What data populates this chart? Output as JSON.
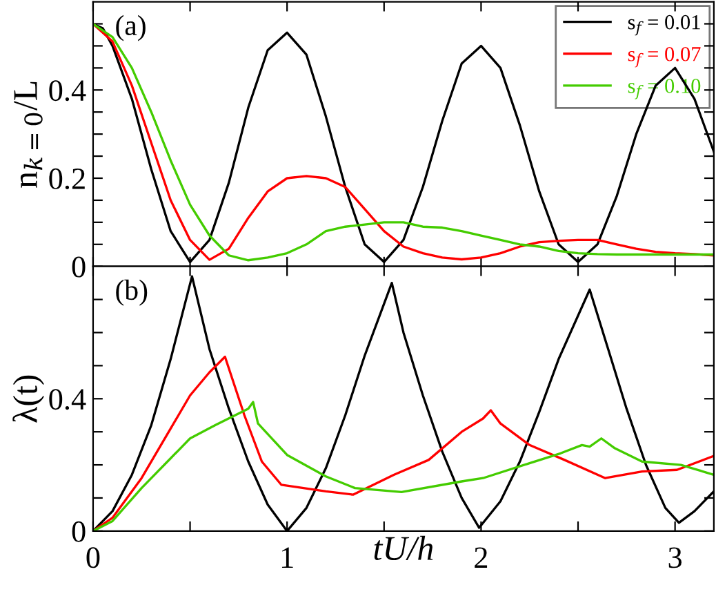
{
  "chart_data": [
    {
      "type": "line",
      "ylabel": "n$_{k=0}$/L",
      "annotations": [
        "(a)"
      ],
      "legend": "top right",
      "tick_labels": "y",
      "xlim": [
        0,
        3.2
      ],
      "xticks": [
        {
          "value": 0,
          "label": null
        },
        {
          "value": 0.5,
          "label": null
        },
        {
          "value": 1,
          "label": null
        },
        {
          "value": 1.5,
          "label": null
        },
        {
          "value": 2,
          "label": null
        },
        {
          "value": 2.5,
          "label": null
        },
        {
          "value": 3,
          "label": null
        }
      ],
      "ylim": [
        0,
        0.6
      ],
      "yticks": [
        0,
        {
          "value": 0.05,
          "label": null
        },
        {
          "value": 0.1,
          "label": null
        },
        {
          "value": 0.15,
          "label": null
        },
        0.2,
        {
          "value": 0.25,
          "label": null
        },
        {
          "value": 0.3,
          "label": null
        },
        {
          "value": 0.35,
          "label": null
        },
        0.4,
        {
          "value": 0.45,
          "label": null
        },
        {
          "value": 0.5,
          "label": null
        },
        {
          "value": 0.55,
          "label": null
        }
      ],
      "series": [
        {
          "name": "s$_{f}$ = 0.01",
          "color": "#000000",
          "x": [
            0,
            0.05,
            0.1,
            0.2,
            0.3,
            0.4,
            0.5,
            0.6,
            0.7,
            0.8,
            0.9,
            1.0,
            1.1,
            1.2,
            1.3,
            1.4,
            1.5,
            1.6,
            1.7,
            1.8,
            1.9,
            2.0,
            2.1,
            2.2,
            2.3,
            2.4,
            2.5,
            2.6,
            2.7,
            2.8,
            2.9,
            3.0,
            3.1,
            3.2
          ],
          "values": [
            0.55,
            0.54,
            0.5,
            0.38,
            0.22,
            0.08,
            0.01,
            0.06,
            0.19,
            0.36,
            0.49,
            0.53,
            0.48,
            0.34,
            0.18,
            0.05,
            0.01,
            0.06,
            0.18,
            0.33,
            0.46,
            0.5,
            0.45,
            0.32,
            0.17,
            0.05,
            0.01,
            0.05,
            0.16,
            0.3,
            0.41,
            0.45,
            0.38,
            0.26
          ]
        },
        {
          "name": "s$_{f}$ = 0.07",
          "color": "#ff0000",
          "x": [
            0,
            0.1,
            0.2,
            0.3,
            0.4,
            0.5,
            0.6,
            0.7,
            0.8,
            0.9,
            1.0,
            1.1,
            1.2,
            1.3,
            1.4,
            1.5,
            1.6,
            1.7,
            1.8,
            1.9,
            2.0,
            2.1,
            2.2,
            2.3,
            2.4,
            2.5,
            2.6,
            2.7,
            2.8,
            2.9,
            3.0,
            3.1,
            3.2
          ],
          "values": [
            0.55,
            0.51,
            0.41,
            0.28,
            0.15,
            0.06,
            0.015,
            0.04,
            0.11,
            0.17,
            0.2,
            0.205,
            0.2,
            0.18,
            0.13,
            0.08,
            0.045,
            0.03,
            0.02,
            0.016,
            0.02,
            0.03,
            0.045,
            0.055,
            0.058,
            0.06,
            0.06,
            0.05,
            0.04,
            0.033,
            0.03,
            0.028,
            0.025
          ]
        },
        {
          "name": "s$_{f}$ = 0.10",
          "color": "#44cc00",
          "x": [
            0,
            0.1,
            0.2,
            0.3,
            0.4,
            0.5,
            0.6,
            0.7,
            0.8,
            0.9,
            1.0,
            1.1,
            1.2,
            1.3,
            1.4,
            1.5,
            1.6,
            1.7,
            1.8,
            1.9,
            2.0,
            2.1,
            2.2,
            2.3,
            2.4,
            2.5,
            2.6,
            2.7,
            2.8,
            2.9,
            3.0,
            3.1,
            3.2
          ],
          "values": [
            0.55,
            0.52,
            0.45,
            0.35,
            0.24,
            0.14,
            0.07,
            0.025,
            0.014,
            0.02,
            0.03,
            0.05,
            0.08,
            0.09,
            0.095,
            0.1,
            0.1,
            0.09,
            0.088,
            0.08,
            0.07,
            0.06,
            0.05,
            0.045,
            0.035,
            0.03,
            0.028,
            0.027,
            0.027,
            0.027,
            0.027,
            0.027,
            0.027
          ]
        }
      ]
    },
    {
      "type": "line",
      "xlabel": "tU/h",
      "ylabel": "λ(t)",
      "annotations": [
        "(b)"
      ],
      "xlim": [
        0,
        3.2
      ],
      "xticks": [
        0,
        {
          "value": 0.5,
          "label": null
        },
        1,
        {
          "value": 1.5,
          "label": null
        },
        2,
        {
          "value": 2.5,
          "label": null
        },
        3
      ],
      "ylim": [
        0,
        0.8
      ],
      "yticks": [
        0,
        {
          "value": 0.1,
          "label": null
        },
        {
          "value": 0.2,
          "label": null
        },
        {
          "value": 0.3,
          "label": null
        },
        0.4,
        {
          "value": 0.5,
          "label": null
        },
        {
          "value": 0.6,
          "label": null
        },
        {
          "value": 0.7,
          "label": null
        }
      ],
      "series": [
        {
          "color": "#000000",
          "x": [
            0,
            0.1,
            0.2,
            0.3,
            0.4,
            0.51,
            0.6,
            0.7,
            0.8,
            0.9,
            1.0,
            1.1,
            1.2,
            1.3,
            1.4,
            1.54,
            1.6,
            1.7,
            1.8,
            1.9,
            1.99,
            2.1,
            2.2,
            2.3,
            2.4,
            2.56,
            2.65,
            2.75,
            2.85,
            2.95,
            3.02,
            3.1,
            3.2
          ],
          "values": [
            0,
            0.06,
            0.17,
            0.32,
            0.52,
            0.77,
            0.55,
            0.37,
            0.21,
            0.08,
            0,
            0.07,
            0.19,
            0.35,
            0.53,
            0.75,
            0.6,
            0.41,
            0.24,
            0.1,
            0.01,
            0.09,
            0.21,
            0.36,
            0.52,
            0.73,
            0.56,
            0.37,
            0.2,
            0.07,
            0.025,
            0.06,
            0.12
          ]
        },
        {
          "color": "#ff0000",
          "x": [
            0,
            0.1,
            0.25,
            0.4,
            0.5,
            0.6,
            0.68,
            0.78,
            0.87,
            0.97,
            1.2,
            1.34,
            1.55,
            1.73,
            1.9,
            2.01,
            2.05,
            2.1,
            2.25,
            2.43,
            2.64,
            2.83,
            3.01,
            3.2
          ],
          "values": [
            0,
            0.04,
            0.16,
            0.31,
            0.41,
            0.48,
            0.527,
            0.35,
            0.21,
            0.14,
            0.12,
            0.11,
            0.17,
            0.215,
            0.3,
            0.34,
            0.365,
            0.325,
            0.26,
            0.215,
            0.16,
            0.18,
            0.185,
            0.227
          ]
        },
        {
          "color": "#44cc00",
          "x": [
            0,
            0.1,
            0.25,
            0.4,
            0.5,
            0.63,
            0.8,
            0.825,
            0.85,
            1.0,
            1.2,
            1.35,
            1.59,
            1.9,
            2.01,
            2.25,
            2.41,
            2.52,
            2.56,
            2.62,
            2.69,
            2.83,
            3.03,
            3.2
          ],
          "values": [
            0,
            0.03,
            0.13,
            0.22,
            0.28,
            0.32,
            0.37,
            0.39,
            0.325,
            0.23,
            0.165,
            0.13,
            0.118,
            0.15,
            0.16,
            0.205,
            0.235,
            0.26,
            0.255,
            0.28,
            0.25,
            0.21,
            0.2,
            0.17
          ]
        }
      ]
    }
  ]
}
